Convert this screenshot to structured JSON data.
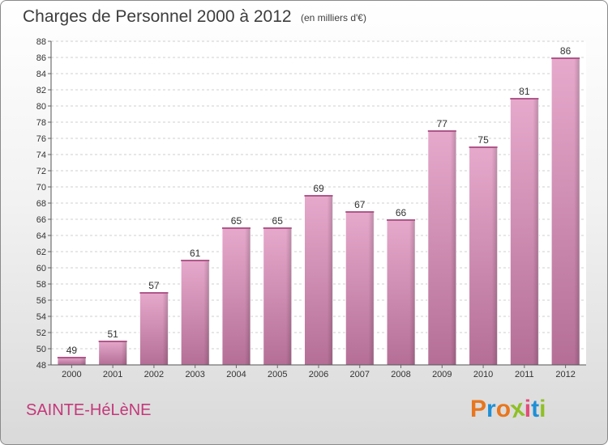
{
  "header": {
    "title": "Charges de Personnel 2000 à 2012",
    "subtitle": "(en milliers d'€)"
  },
  "footer": {
    "town": "SAINTE-HéLèNE",
    "brand_letters": [
      {
        "ch": "P",
        "color": "#e8761e"
      },
      {
        "ch": "r",
        "color": "#1f8fd6"
      },
      {
        "ch": "o",
        "color": "#e8761e"
      },
      {
        "ch": "x",
        "color": "#8fbf26"
      },
      {
        "ch": "i",
        "color": "#e34b7a"
      },
      {
        "ch": "t",
        "color": "#1f8fd6"
      },
      {
        "ch": "i",
        "color": "#8fbf26"
      }
    ]
  },
  "chart_data": {
    "type": "bar",
    "title": "Charges de Personnel 2000 à 2012",
    "subtitle": "(en milliers d'€)",
    "categories": [
      "2000",
      "2001",
      "2002",
      "2003",
      "2004",
      "2005",
      "2006",
      "2007",
      "2008",
      "2009",
      "2010",
      "2011",
      "2012"
    ],
    "values": [
      49,
      51,
      57,
      61,
      65,
      65,
      69,
      67,
      66,
      77,
      75,
      81,
      86
    ],
    "ylim": [
      48,
      88
    ],
    "yticks": [
      48,
      50,
      52,
      54,
      56,
      58,
      60,
      62,
      64,
      66,
      68,
      70,
      72,
      74,
      76,
      78,
      80,
      82,
      84,
      86,
      88
    ],
    "grid": true,
    "bar_color": "#d98fbb",
    "xlabel": "",
    "ylabel": ""
  }
}
